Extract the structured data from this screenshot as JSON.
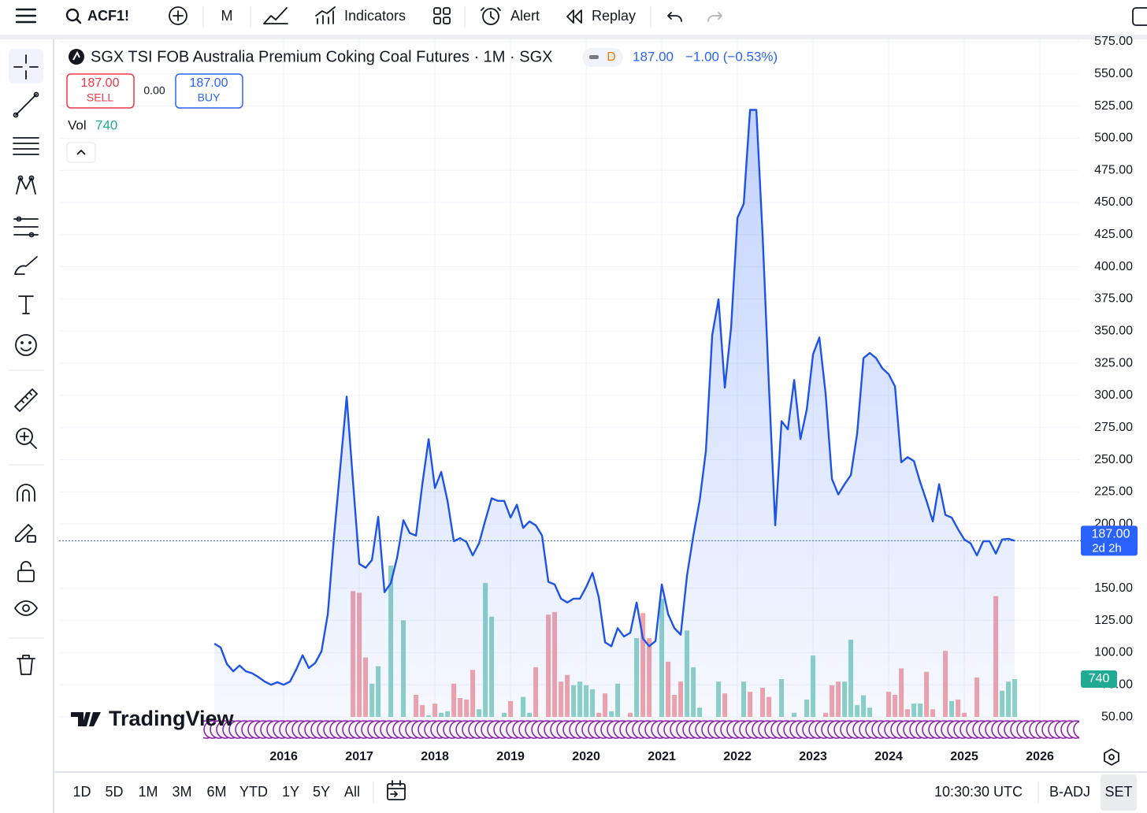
{
  "toolbar": {
    "symbol": "ACF1!",
    "interval": "M",
    "indicators": "Indicators",
    "alert": "Alert",
    "replay": "Replay"
  },
  "legend": {
    "title": "SGX TSI FOB Australia Premium Coking Coal Futures · 1M · SGX",
    "badge": "D",
    "price": "187.00",
    "change": "−1.00 (−0.53%)"
  },
  "trade": {
    "sell_price": "187.00",
    "sell": "SELL",
    "spread": "0.00",
    "buy_price": "187.00",
    "buy": "BUY"
  },
  "watermark": "TradingView",
  "bottom_bar": {
    "ranges": [
      "1D",
      "5D",
      "1M",
      "3M",
      "6M",
      "YTD",
      "1Y",
      "5Y",
      "All"
    ],
    "clock": "10:30:30 UTC",
    "adjust": "B-ADJ",
    "session": "SET"
  },
  "chart_data": {
    "type": "area",
    "color": "#1e53e5",
    "x": [
      2015.083,
      2015.167,
      2015.25,
      2015.333,
      2015.417,
      2015.5,
      2015.583,
      2015.667,
      2015.75,
      2015.833,
      2015.917,
      2016,
      2016.083,
      2016.167,
      2016.25,
      2016.333,
      2016.417,
      2016.5,
      2016.583,
      2016.667,
      2016.75,
      2016.833,
      2016.917,
      2017,
      2017.083,
      2017.167,
      2017.25,
      2017.333,
      2017.417,
      2017.5,
      2017.583,
      2017.667,
      2017.75,
      2017.833,
      2017.917,
      2018,
      2018.083,
      2018.167,
      2018.25,
      2018.333,
      2018.417,
      2018.5,
      2018.583,
      2018.667,
      2018.75,
      2018.833,
      2018.917,
      2019,
      2019.083,
      2019.167,
      2019.25,
      2019.333,
      2019.417,
      2019.5,
      2019.583,
      2019.667,
      2019.75,
      2019.833,
      2019.917,
      2020,
      2020.083,
      2020.167,
      2020.25,
      2020.333,
      2020.417,
      2020.5,
      2020.583,
      2020.667,
      2020.75,
      2020.833,
      2020.917,
      2021,
      2021.083,
      2021.167,
      2021.25,
      2021.333,
      2021.417,
      2021.5,
      2021.583,
      2021.667,
      2021.75,
      2021.833,
      2021.917,
      2022,
      2022.083,
      2022.167,
      2022.25,
      2022.333,
      2022.417,
      2022.5,
      2022.583,
      2022.667,
      2022.75,
      2022.833,
      2022.917,
      2023,
      2023.083,
      2023.167,
      2023.25,
      2023.333,
      2023.417,
      2023.5,
      2023.583,
      2023.667,
      2023.75,
      2023.833,
      2023.917,
      2024,
      2024.083,
      2024.167,
      2024.25,
      2024.333,
      2024.417,
      2024.5,
      2024.583,
      2024.667,
      2024.75,
      2024.833,
      2024.917,
      2025,
      2025.083,
      2025.167,
      2025.25,
      2025.333,
      2025.417,
      2025.5,
      2025.583,
      2025.667
    ],
    "values": [
      107,
      104,
      91,
      85.5,
      90,
      85.5,
      84,
      81,
      77.5,
      75,
      77,
      75,
      77.5,
      87,
      98,
      88,
      92,
      101,
      130,
      191,
      245,
      299,
      233,
      169,
      166,
      172,
      205.6,
      147,
      154,
      174,
      203,
      193,
      191,
      231,
      266,
      228,
      240.5,
      218,
      186.6,
      189,
      186,
      175.6,
      185,
      203,
      220,
      218,
      218,
      205,
      215,
      197,
      202,
      199,
      191,
      155,
      153,
      142,
      139,
      142,
      142,
      151,
      162,
      143,
      108,
      105,
      119,
      112.5,
      115.5,
      139,
      111,
      105,
      109,
      153,
      130,
      119,
      114,
      160,
      191,
      218,
      257,
      347,
      374.7,
      306,
      353,
      438,
      449,
      522,
      522,
      424,
      307,
      199,
      280,
      273.6,
      312,
      266,
      289,
      332,
      345,
      301,
      235,
      223,
      231,
      238,
      270.5,
      329,
      333,
      329,
      321,
      316.5,
      307,
      248,
      252,
      249,
      232.5,
      218,
      202,
      231,
      207,
      205,
      196,
      188,
      185,
      175.6,
      186.6,
      186.6,
      177,
      188,
      188.5,
      187
    ],
    "xlim": [
      2013.03,
      2026.52
    ],
    "xticks": [
      2016,
      2017,
      2018,
      2019,
      2020,
      2021,
      2022,
      2023,
      2024,
      2025,
      2026
    ],
    "ylim": [
      28.6,
      576.8
    ],
    "yticks": [
      {
        "value": 50,
        "label": "50.00"
      },
      {
        "value": 75,
        "label": "75.00"
      },
      {
        "value": 100,
        "label": "100.00"
      },
      {
        "value": 125,
        "label": "125.00"
      },
      {
        "value": 150,
        "label": "150.00"
      },
      {
        "value": 200,
        "label": "200.00"
      },
      {
        "value": 225,
        "label": "225.00"
      },
      {
        "value": 250,
        "label": "250.00"
      },
      {
        "value": 275,
        "label": "275.00"
      },
      {
        "value": 300,
        "label": "300.00"
      },
      {
        "value": 325,
        "label": "325.00"
      },
      {
        "value": 350,
        "label": "350.00"
      },
      {
        "value": 375,
        "label": "375.00"
      },
      {
        "value": 400,
        "label": "400.00"
      },
      {
        "value": 425,
        "label": "425.00"
      },
      {
        "value": 450,
        "label": "450.00"
      },
      {
        "value": 475,
        "label": "475.00"
      },
      {
        "value": 500,
        "label": "500.00"
      },
      {
        "value": 525,
        "label": "525.00"
      },
      {
        "value": 550,
        "label": "550.00"
      },
      {
        "value": 575,
        "label": "575.00"
      }
    ],
    "grid": true,
    "last_price": {
      "value": 187,
      "label": "187.00",
      "countdown": "2d 2h",
      "color": "#2962ff"
    },
    "volume": {
      "name": "Vol",
      "ylim": [
        0,
        13250
      ],
      "tag_color": "#22ab94",
      "x": [
        2016.917,
        2017,
        2017.083,
        2017.167,
        2017.25,
        2017.417,
        2017.583,
        2017.75,
        2017.833,
        2017.917,
        2018,
        2018.083,
        2018.167,
        2018.25,
        2018.333,
        2018.417,
        2018.5,
        2018.583,
        2018.667,
        2018.75,
        2018.917,
        2019,
        2019.167,
        2019.25,
        2019.333,
        2019.5,
        2019.583,
        2019.667,
        2019.75,
        2019.833,
        2019.917,
        2020,
        2020.083,
        2020.167,
        2020.25,
        2020.333,
        2020.417,
        2020.583,
        2020.667,
        2020.75,
        2020.833,
        2021,
        2021.083,
        2021.167,
        2021.25,
        2021.333,
        2021.417,
        2021.5,
        2021.75,
        2021.833,
        2022.083,
        2022.167,
        2022.333,
        2022.417,
        2022.583,
        2022.75,
        2022.917,
        2023,
        2023.167,
        2023.25,
        2023.333,
        2023.417,
        2023.5,
        2023.583,
        2023.667,
        2023.75,
        2024,
        2024.083,
        2024.167,
        2024.25,
        2024.333,
        2024.417,
        2024.5,
        2024.583,
        2024.75,
        2024.833,
        2024.917,
        2025,
        2025.167,
        2025.417,
        2025.5,
        2025.583,
        2025.667
      ],
      "values": [
        2460,
        2430,
        1160,
        650,
        990,
        2960,
        1890,
        430,
        230,
        30,
        260,
        80,
        110,
        650,
        370,
        340,
        920,
        150,
        2620,
        1960,
        80,
        310,
        390,
        80,
        970,
        2000,
        2050,
        690,
        820,
        620,
        690,
        620,
        540,
        80,
        460,
        110,
        650,
        80,
        1540,
        2030,
        1540,
        2310,
        1080,
        430,
        690,
        1690,
        970,
        180,
        690,
        460,
        690,
        490,
        570,
        390,
        740,
        80,
        340,
        1200,
        80,
        620,
        690,
        690,
        1510,
        230,
        420,
        180,
        490,
        430,
        950,
        150,
        260,
        260,
        880,
        150,
        1290,
        310,
        340,
        80,
        770,
        2360,
        510,
        690,
        740
      ],
      "colors": [
        "#f4a4a8",
        "#f4a4a8",
        "#f4a4a8",
        "#8dd3c5",
        "#8dd3c5",
        "#8dd3c5",
        "#8dd3c5",
        "#f4a4a8",
        "#f4a4a8",
        "#8dd3c5",
        "#f4a4a8",
        "#8dd3c5",
        "#8dd3c5",
        "#f4a4a8",
        "#f4a4a8",
        "#f4a4a8",
        "#f4a4a8",
        "#8dd3c5",
        "#8dd3c5",
        "#8dd3c5",
        "#8dd3c5",
        "#f4a4a8",
        "#8dd3c5",
        "#8dd3c5",
        "#f4a4a8",
        "#f4a4a8",
        "#f4a4a8",
        "#f4a4a8",
        "#f4a4a8",
        "#8dd3c5",
        "#8dd3c5",
        "#8dd3c5",
        "#8dd3c5",
        "#f4a4a8",
        "#f4a4a8",
        "#8dd3c5",
        "#8dd3c5",
        "#f4a4a8",
        "#8dd3c5",
        "#f4a4a8",
        "#f4a4a8",
        "#8dd3c5",
        "#f4a4a8",
        "#f4a4a8",
        "#f4a4a8",
        "#8dd3c5",
        "#8dd3c5",
        "#8dd3c5",
        "#8dd3c5",
        "#f4a4a8",
        "#8dd3c5",
        "#f4a4a8",
        "#f4a4a8",
        "#f4a4a8",
        "#8dd3c5",
        "#8dd3c5",
        "#8dd3c5",
        "#8dd3c5",
        "#f4a4a8",
        "#f4a4a8",
        "#f4a4a8",
        "#8dd3c5",
        "#8dd3c5",
        "#8dd3c5",
        "#8dd3c5",
        "#8dd3c5",
        "#f4a4a8",
        "#f4a4a8",
        "#f4a4a8",
        "#f4a4a8",
        "#8dd3c5",
        "#8dd3c5",
        "#f4a4a8",
        "#f4a4a8",
        "#f4a4a8",
        "#8dd3c5",
        "#f4a4a8",
        "#f4a4a8",
        "#f4a4a8",
        "#f4a4a8",
        "#8dd3c5",
        "#8dd3c5",
        "#8dd3c5"
      ]
    }
  }
}
